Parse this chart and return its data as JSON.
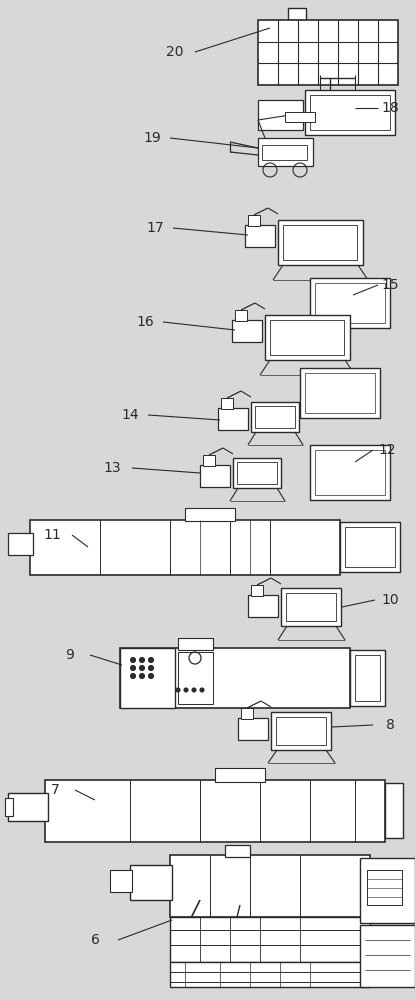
{
  "bg_color": "#d8d8d8",
  "line_color": "#2a2a2a",
  "fig_width": 4.15,
  "fig_height": 10.0,
  "dpi": 100
}
